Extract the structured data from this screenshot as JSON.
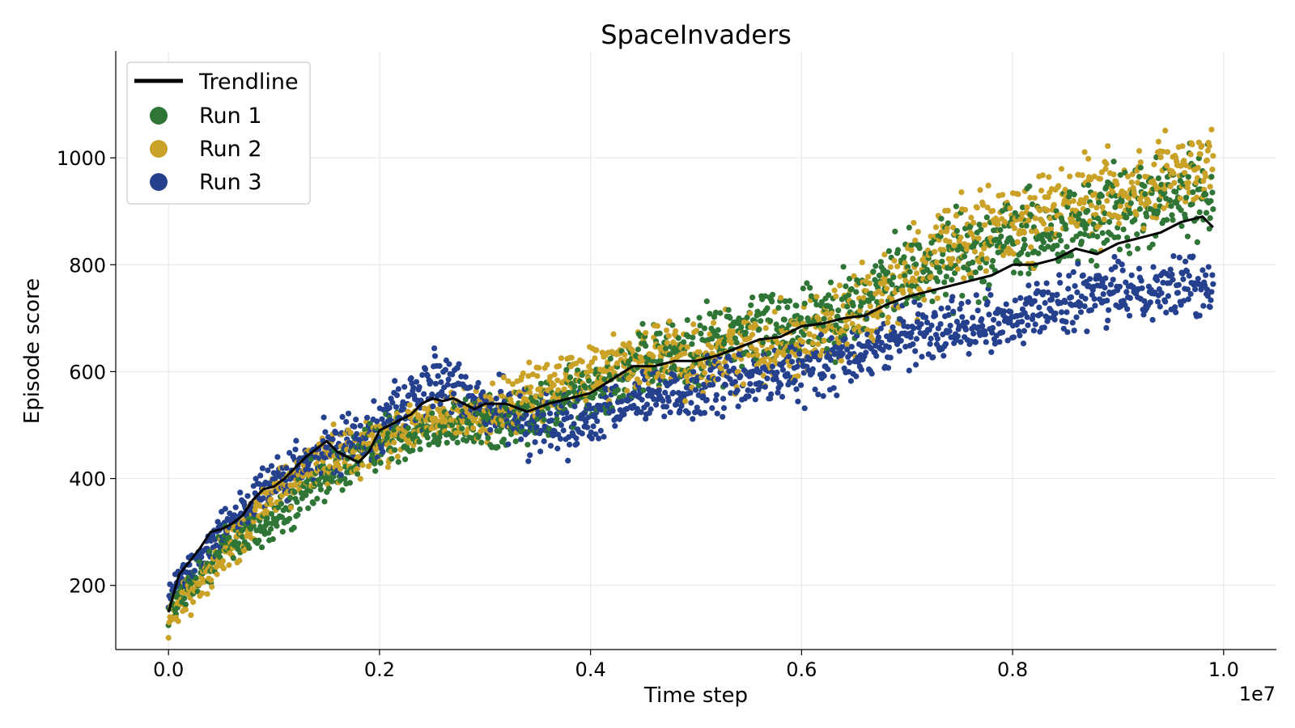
{
  "chart_data": {
    "type": "scatter",
    "title": "SpaceInvaders",
    "xlabel": "Time step",
    "ylabel": "Episode score",
    "x_offset_label": "1e7",
    "xlim": [
      -0.05,
      1.05
    ],
    "ylim": [
      80,
      1200
    ],
    "x_ticks": [
      0.0,
      0.2,
      0.4,
      0.6,
      0.8,
      1.0
    ],
    "x_tick_labels": [
      "0.0",
      "0.2",
      "0.4",
      "0.6",
      "0.8",
      "1.0"
    ],
    "y_ticks": [
      200,
      400,
      600,
      800,
      1000
    ],
    "y_tick_labels": [
      "200",
      "400",
      "600",
      "800",
      "1000"
    ],
    "grid": true,
    "legend_position": "top-left",
    "series": [
      {
        "name": "Run 1",
        "color": "#2e7536",
        "kind": "scatter",
        "x": [
          0.0,
          0.05,
          0.1,
          0.15,
          0.2,
          0.25,
          0.3,
          0.35,
          0.4,
          0.45,
          0.5,
          0.55,
          0.6,
          0.65,
          0.7,
          0.75,
          0.8,
          0.85,
          0.9,
          0.95,
          0.99
        ],
        "center": [
          150,
          270,
          320,
          400,
          470,
          500,
          500,
          520,
          570,
          620,
          640,
          680,
          700,
          720,
          790,
          820,
          850,
          860,
          900,
          920,
          940
        ],
        "spread": [
          40,
          60,
          70,
          70,
          70,
          70,
          70,
          80,
          80,
          90,
          100,
          110,
          110,
          110,
          120,
          120,
          120,
          120,
          120,
          120,
          110
        ]
      },
      {
        "name": "Run 2",
        "color": "#c9a227",
        "kind": "scatter",
        "x": [
          0.0,
          0.05,
          0.1,
          0.15,
          0.2,
          0.25,
          0.3,
          0.35,
          0.4,
          0.45,
          0.5,
          0.55,
          0.6,
          0.65,
          0.7,
          0.75,
          0.8,
          0.85,
          0.9,
          0.95,
          0.99
        ],
        "center": [
          140,
          250,
          370,
          440,
          470,
          510,
          520,
          560,
          600,
          630,
          620,
          650,
          660,
          710,
          780,
          840,
          880,
          910,
          930,
          960,
          980
        ],
        "spread": [
          50,
          60,
          70,
          70,
          70,
          70,
          70,
          80,
          80,
          90,
          100,
          100,
          110,
          110,
          120,
          120,
          120,
          120,
          120,
          110,
          100
        ]
      },
      {
        "name": "Run 3",
        "color": "#25418e",
        "kind": "scatter",
        "x": [
          0.0,
          0.05,
          0.1,
          0.15,
          0.2,
          0.25,
          0.3,
          0.35,
          0.4,
          0.45,
          0.5,
          0.55,
          0.6,
          0.65,
          0.7,
          0.75,
          0.8,
          0.85,
          0.9,
          0.95,
          0.99
        ],
        "center": [
          180,
          310,
          390,
          450,
          500,
          580,
          540,
          500,
          500,
          560,
          560,
          590,
          600,
          630,
          670,
          690,
          700,
          730,
          750,
          760,
          760
        ],
        "spread": [
          40,
          60,
          70,
          70,
          80,
          90,
          80,
          80,
          80,
          80,
          80,
          80,
          80,
          80,
          80,
          80,
          80,
          80,
          80,
          80,
          80
        ]
      },
      {
        "name": "Trendline",
        "color": "#000000",
        "kind": "line",
        "x": [
          0.0,
          0.01,
          0.02,
          0.03,
          0.04,
          0.05,
          0.06,
          0.07,
          0.08,
          0.09,
          0.1,
          0.11,
          0.12,
          0.13,
          0.14,
          0.15,
          0.16,
          0.17,
          0.18,
          0.19,
          0.2,
          0.21,
          0.22,
          0.23,
          0.24,
          0.25,
          0.26,
          0.27,
          0.28,
          0.29,
          0.3,
          0.32,
          0.34,
          0.36,
          0.38,
          0.4,
          0.42,
          0.44,
          0.46,
          0.48,
          0.5,
          0.52,
          0.54,
          0.56,
          0.58,
          0.6,
          0.62,
          0.64,
          0.66,
          0.68,
          0.7,
          0.72,
          0.74,
          0.76,
          0.78,
          0.8,
          0.82,
          0.84,
          0.86,
          0.88,
          0.9,
          0.92,
          0.94,
          0.96,
          0.98,
          0.99
        ],
        "y": [
          150,
          220,
          245,
          270,
          300,
          305,
          315,
          330,
          360,
          380,
          385,
          400,
          420,
          440,
          455,
          470,
          450,
          440,
          430,
          450,
          490,
          500,
          510,
          520,
          540,
          550,
          545,
          550,
          540,
          530,
          540,
          540,
          525,
          540,
          550,
          560,
          585,
          610,
          610,
          620,
          620,
          630,
          645,
          660,
          665,
          685,
          690,
          700,
          705,
          725,
          740,
          750,
          760,
          770,
          780,
          800,
          800,
          810,
          830,
          820,
          840,
          850,
          860,
          880,
          890,
          870
        ]
      }
    ]
  }
}
